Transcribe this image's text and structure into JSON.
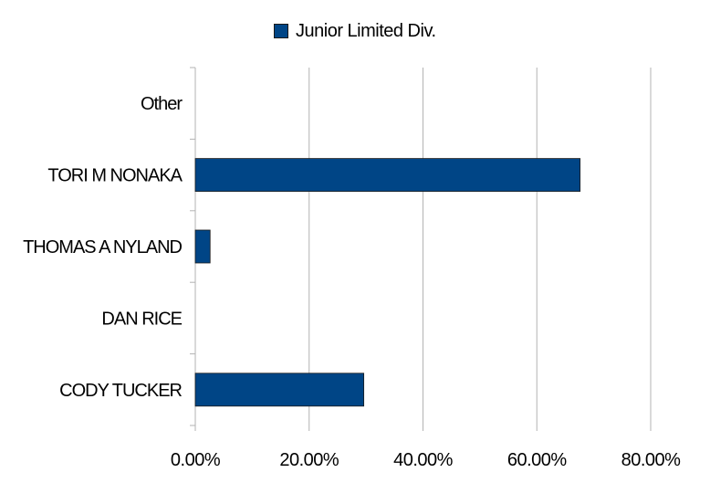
{
  "chart_data": {
    "type": "bar",
    "orientation": "horizontal",
    "categories": [
      "CODY TUCKER",
      "DAN RICE",
      "THOMAS A NYLAND",
      "TORI M NONAKA",
      "Other"
    ],
    "series": [
      {
        "name": "Junior Limited Div.",
        "values": [
          29.6,
          0,
          2.6,
          67.6,
          0
        ],
        "color": "#004586"
      }
    ],
    "x_ticks": [
      "0.00%",
      "20.00%",
      "40.00%",
      "60.00%",
      "80.00%"
    ],
    "xlim": [
      0,
      80
    ],
    "grid": true,
    "legend_position": "top"
  }
}
